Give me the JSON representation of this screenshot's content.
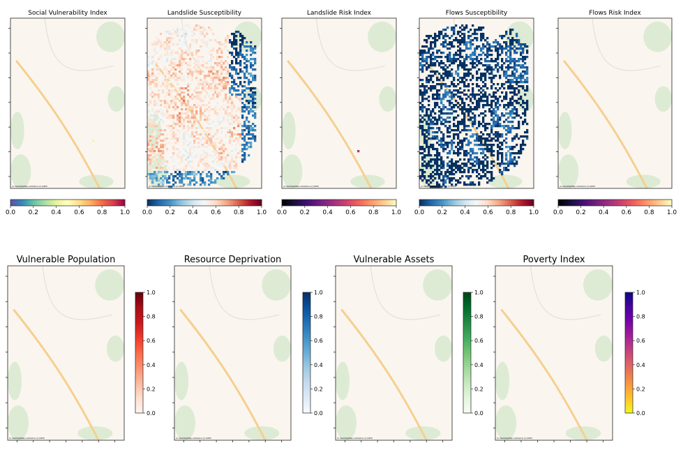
{
  "chart_data": [
    {
      "type": "heatmap",
      "title": "Social Vulnerability Index",
      "colormap": "Spectral_r",
      "clim": [
        0,
        1
      ],
      "colorbar_ticks": [
        "0.0",
        "0.2",
        "0.4",
        "0.6",
        "0.8",
        "1.0"
      ],
      "colorbar_orientation": "horizontal",
      "attribution": "(c) OpenStreetMap contributors (c) CARTO"
    },
    {
      "type": "heatmap",
      "title": "Landslide Susceptibility",
      "colormap": "RdBu_r",
      "clim": [
        0,
        1
      ],
      "colorbar_ticks": [
        "0.0",
        "0.2",
        "0.4",
        "0.6",
        "0.8",
        "1.0"
      ],
      "colorbar_orientation": "horizontal",
      "attribution": "(c) OpenStreetMap contributors (c) CARTO"
    },
    {
      "type": "heatmap",
      "title": "Landslide Risk Index",
      "colormap": "magma",
      "clim": [
        0,
        1
      ],
      "colorbar_ticks": [
        "0.0",
        "0.2",
        "0.4",
        "0.6",
        "0.8",
        "1.0"
      ],
      "colorbar_orientation": "horizontal",
      "attribution": "(c) OpenStreetMap contributors (c) CARTO"
    },
    {
      "type": "heatmap",
      "title": "Flows Susceptibility",
      "colormap": "RdBu_r",
      "clim": [
        0,
        1
      ],
      "colorbar_ticks": [
        "0.0",
        "0.2",
        "0.4",
        "0.6",
        "0.8",
        "1.0"
      ],
      "colorbar_orientation": "horizontal",
      "attribution": "(c) OpenStreetMap contributors (c) CARTO"
    },
    {
      "type": "heatmap",
      "title": "Flows Risk Index",
      "colormap": "magma",
      "clim": [
        0,
        1
      ],
      "colorbar_ticks": [
        "0.0",
        "0.2",
        "0.4",
        "0.6",
        "0.8",
        "1.0"
      ],
      "colorbar_orientation": "horizontal",
      "attribution": "(c) OpenStreetMap contributors (c) CARTO"
    },
    {
      "type": "heatmap",
      "title": "Vulnerable Population",
      "colormap": "Reds",
      "clim": [
        0,
        1
      ],
      "colorbar_ticks": [
        "0.0",
        "0.2",
        "0.4",
        "0.6",
        "0.8",
        "1.0"
      ],
      "colorbar_orientation": "vertical",
      "attribution": "(c) OpenStreetMap contributors (c) CARTO"
    },
    {
      "type": "heatmap",
      "title": "Resource Deprivation",
      "colormap": "Blues",
      "clim": [
        0,
        1
      ],
      "colorbar_ticks": [
        "0.0",
        "0.2",
        "0.4",
        "0.6",
        "0.8",
        "1.0"
      ],
      "colorbar_orientation": "vertical",
      "attribution": "(c) OpenStreetMap contributors (c) CARTO"
    },
    {
      "type": "heatmap",
      "title": "Vulnerable Assets",
      "colormap": "Greens",
      "clim": [
        0,
        1
      ],
      "colorbar_ticks": [
        "0.0",
        "0.2",
        "0.4",
        "0.6",
        "0.8",
        "1.0"
      ],
      "colorbar_orientation": "vertical",
      "attribution": "(c) OpenStreetMap contributors (c) CARTO"
    },
    {
      "type": "heatmap",
      "title": "Poverty Index",
      "colormap": "plasma_r",
      "clim": [
        0,
        1
      ],
      "colorbar_ticks": [
        "0.0",
        "0.2",
        "0.4",
        "0.6",
        "0.8",
        "1.0"
      ],
      "colorbar_orientation": "vertical",
      "attribution": "(c) OpenStreetMap contributors (c) CARTO"
    }
  ]
}
